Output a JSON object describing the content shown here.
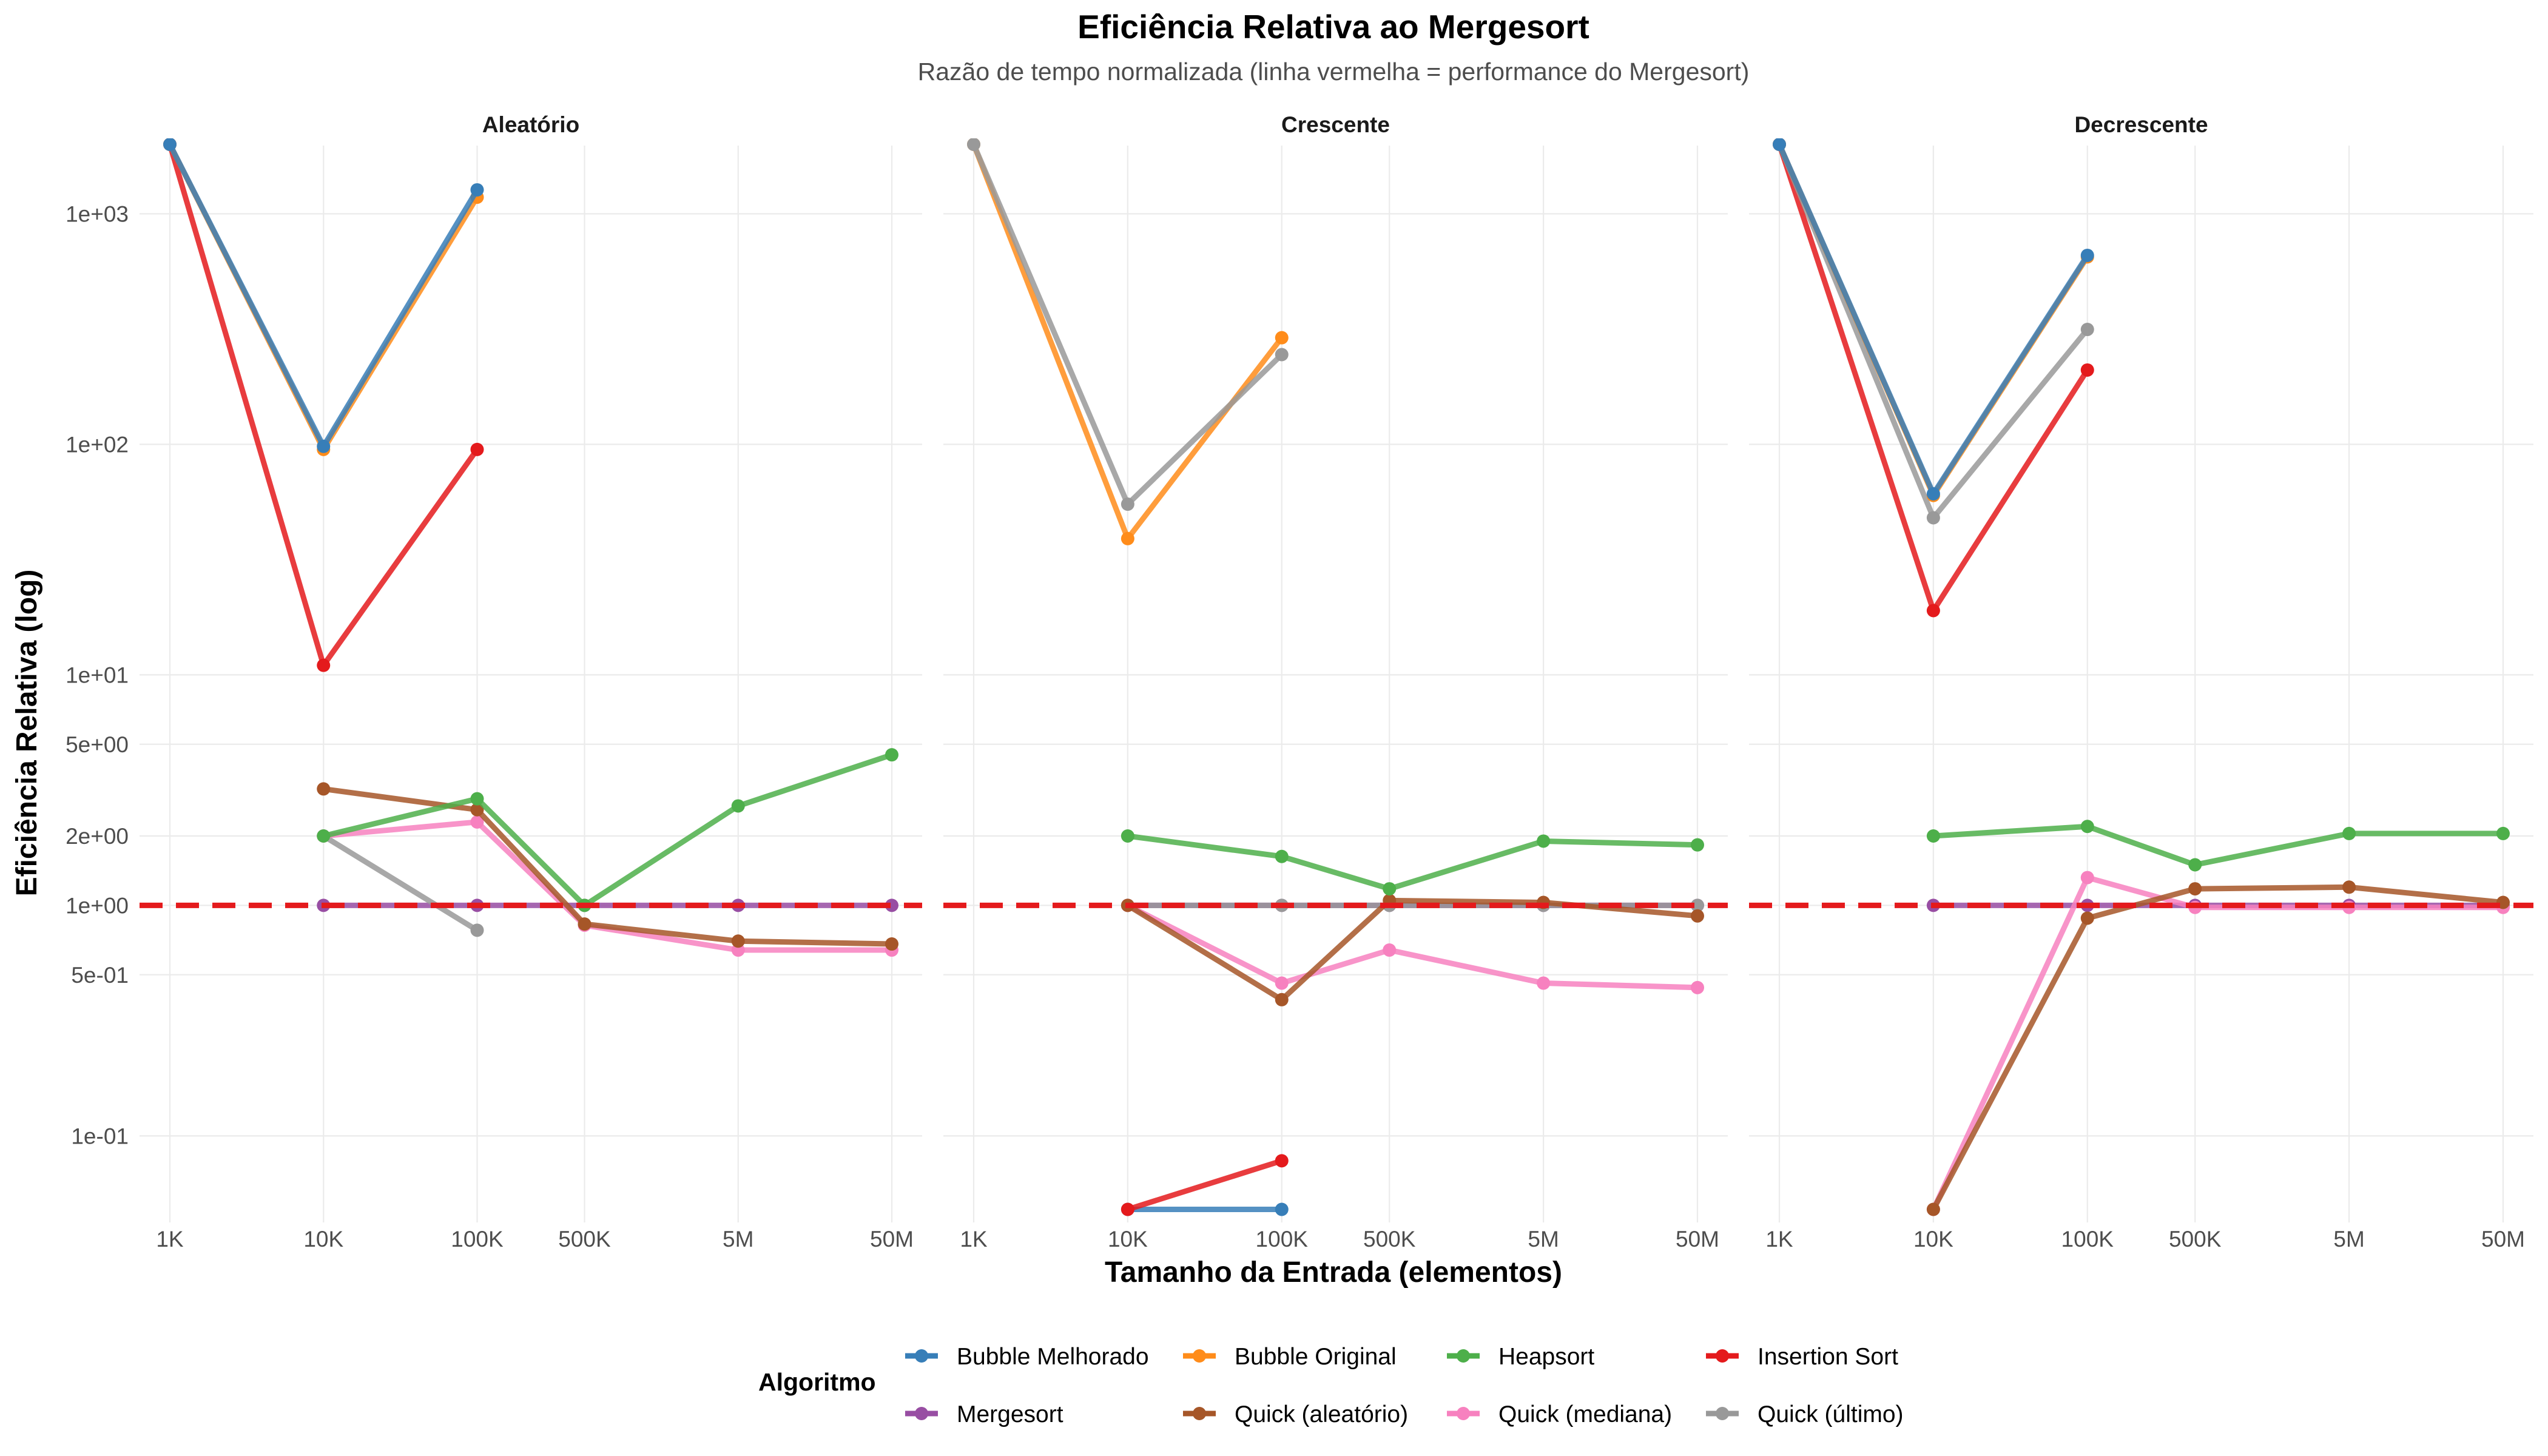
{
  "chart_data": {
    "type": "line",
    "title": "Eficiência Relativa ao Mergesort",
    "subtitle": "Razão de tempo normalizada (linha vermelha = performance do Mergesort)",
    "xlabel": "Tamanho da Entrada (elementos)",
    "ylabel": "Eficiência Relativa (log)",
    "x_categories": [
      "1K",
      "10K",
      "100K",
      "500K",
      "5M",
      "50M"
    ],
    "x_log_values": [
      1000,
      10000,
      100000,
      500000,
      5000000,
      50000000
    ],
    "y_scale": "log10",
    "ylim": [
      0.042,
      2000
    ],
    "y_ticks": [
      {
        "value": 1000,
        "label": "1e+03"
      },
      {
        "value": 100,
        "label": "1e+02"
      },
      {
        "value": 10,
        "label": "1e+01"
      },
      {
        "value": 5,
        "label": "5e+00"
      },
      {
        "value": 2,
        "label": "2e+00"
      },
      {
        "value": 1,
        "label": "1e+00"
      },
      {
        "value": 0.5,
        "label": "5e-01"
      },
      {
        "value": 0.1,
        "label": "1e-01"
      }
    ],
    "reference_line": {
      "value": 1,
      "color": "#e41a1c",
      "style": "dashed"
    },
    "legend": {
      "title": "Algoritmo",
      "position": "bottom"
    },
    "algorithms": [
      {
        "name": "Bubble Melhorado",
        "color": "#377eb8"
      },
      {
        "name": "Bubble Original",
        "color": "#ff8c1a"
      },
      {
        "name": "Heapsort",
        "color": "#4daf4a"
      },
      {
        "name": "Insertion Sort",
        "color": "#e41a1c"
      },
      {
        "name": "Mergesort",
        "color": "#984ea3"
      },
      {
        "name": "Quick (aleatório)",
        "color": "#a65628"
      },
      {
        "name": "Quick (mediana)",
        "color": "#f781bf"
      },
      {
        "name": "Quick (último)",
        "color": "#999999"
      }
    ],
    "panels": [
      {
        "name": "Aleatório",
        "series": [
          {
            "name": "Mergesort",
            "points": [
              [
                10000,
                1
              ],
              [
                100000,
                1
              ],
              [
                500000,
                1
              ],
              [
                5000000,
                1
              ],
              [
                50000000,
                1
              ]
            ]
          },
          {
            "name": "Quick (último)",
            "points": [
              [
                10000,
                2
              ],
              [
                100000,
                0.78
              ]
            ]
          },
          {
            "name": "Quick (mediana)",
            "points": [
              [
                10000,
                2
              ],
              [
                100000,
                2.3
              ],
              [
                500000,
                0.82
              ],
              [
                5000000,
                0.64
              ],
              [
                50000000,
                0.64
              ]
            ]
          },
          {
            "name": "Quick (aleatório)",
            "points": [
              [
                10000,
                3.2
              ],
              [
                100000,
                2.6
              ],
              [
                500000,
                0.83
              ],
              [
                5000000,
                0.7
              ],
              [
                50000000,
                0.68
              ]
            ]
          },
          {
            "name": "Heapsort",
            "points": [
              [
                10000,
                2
              ],
              [
                100000,
                2.9
              ],
              [
                500000,
                1
              ],
              [
                5000000,
                2.7
              ],
              [
                50000000,
                4.5
              ]
            ]
          },
          {
            "name": "Insertion Sort",
            "points": [
              [
                1000,
                2000
              ],
              [
                10000,
                11
              ],
              [
                100000,
                95
              ]
            ]
          },
          {
            "name": "Bubble Original",
            "points": [
              [
                1000,
                2000
              ],
              [
                10000,
                95
              ],
              [
                100000,
                1180
              ]
            ]
          },
          {
            "name": "Bubble Melhorado",
            "points": [
              [
                1000,
                2000
              ],
              [
                10000,
                98
              ],
              [
                100000,
                1270
              ]
            ]
          }
        ]
      },
      {
        "name": "Crescente",
        "series": [
          {
            "name": "Bubble Melhorado",
            "points": [
              [
                10000,
                0.048
              ],
              [
                100000,
                0.048
              ]
            ]
          },
          {
            "name": "Insertion Sort",
            "points": [
              [
                10000,
                0.048
              ],
              [
                100000,
                0.078
              ]
            ]
          },
          {
            "name": "Mergesort",
            "points": [
              [
                10000,
                1
              ],
              [
                100000,
                1
              ],
              [
                500000,
                1
              ],
              [
                5000000,
                1
              ],
              [
                50000000,
                1
              ]
            ]
          },
          {
            "name": "Quick (último)",
            "points": [
              [
                10000,
                1
              ],
              [
                100000,
                1
              ],
              [
                500000,
                1
              ],
              [
                5000000,
                1
              ],
              [
                50000000,
                1
              ]
            ]
          },
          {
            "name": "Quick (mediana)",
            "points": [
              [
                10000,
                1
              ],
              [
                100000,
                0.46
              ],
              [
                500000,
                0.64
              ],
              [
                5000000,
                0.46
              ],
              [
                50000000,
                0.44
              ]
            ]
          },
          {
            "name": "Quick (aleatório)",
            "points": [
              [
                10000,
                1
              ],
              [
                100000,
                0.39
              ],
              [
                500000,
                1.05
              ],
              [
                5000000,
                1.03
              ],
              [
                50000000,
                0.9
              ]
            ]
          },
          {
            "name": "Heapsort",
            "points": [
              [
                10000,
                2
              ],
              [
                100000,
                1.63
              ],
              [
                500000,
                1.18
              ],
              [
                5000000,
                1.9
              ],
              [
                50000000,
                1.83
              ]
            ]
          },
          {
            "name": "Bubble Original",
            "points": [
              [
                1000,
                2000
              ],
              [
                10000,
                39
              ],
              [
                100000,
                290
              ]
            ]
          },
          {
            "name": "Quick (último)",
            "points": [
              [
                1000,
                2000
              ],
              [
                10000,
                55
              ],
              [
                100000,
                245
              ]
            ]
          }
        ]
      },
      {
        "name": "Decrescente",
        "series": [
          {
            "name": "Mergesort",
            "points": [
              [
                10000,
                1
              ],
              [
                100000,
                1
              ],
              [
                500000,
                1
              ],
              [
                5000000,
                1
              ],
              [
                50000000,
                1
              ]
            ]
          },
          {
            "name": "Quick (mediana)",
            "points": [
              [
                10000,
                0.048
              ],
              [
                100000,
                1.32
              ],
              [
                500000,
                0.98
              ],
              [
                5000000,
                0.98
              ],
              [
                50000000,
                0.98
              ]
            ]
          },
          {
            "name": "Quick (aleatório)",
            "points": [
              [
                10000,
                0.048
              ],
              [
                100000,
                0.88
              ],
              [
                500000,
                1.18
              ],
              [
                5000000,
                1.2
              ],
              [
                50000000,
                1.03
              ]
            ]
          },
          {
            "name": "Heapsort",
            "points": [
              [
                10000,
                2
              ],
              [
                100000,
                2.2
              ],
              [
                500000,
                1.5
              ],
              [
                5000000,
                2.05
              ],
              [
                50000000,
                2.05
              ]
            ]
          },
          {
            "name": "Insertion Sort",
            "points": [
              [
                1000,
                2000
              ],
              [
                10000,
                19
              ],
              [
                100000,
                210
              ]
            ]
          },
          {
            "name": "Quick (último)",
            "points": [
              [
                1000,
                2000
              ],
              [
                10000,
                48
              ],
              [
                100000,
                315
              ]
            ]
          },
          {
            "name": "Bubble Original",
            "points": [
              [
                1000,
                2000
              ],
              [
                10000,
                60
              ],
              [
                100000,
                650
              ]
            ]
          },
          {
            "name": "Bubble Melhorado",
            "points": [
              [
                1000,
                2000
              ],
              [
                10000,
                61
              ],
              [
                100000,
                660
              ]
            ]
          }
        ]
      }
    ]
  }
}
